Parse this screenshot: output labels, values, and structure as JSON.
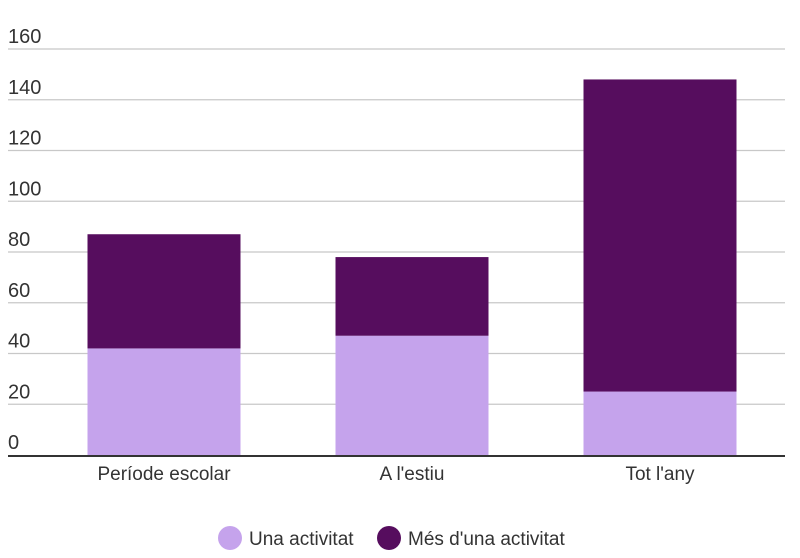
{
  "chart_data": {
    "type": "bar",
    "stacked": true,
    "categories": [
      "Període escolar",
      "A l'estiu",
      "Tot l'any"
    ],
    "series": [
      {
        "name": "Una activitat",
        "color": "#c5a3ec",
        "values": [
          42,
          47,
          25
        ]
      },
      {
        "name": "Més d'una activitat",
        "color": "#560d5e",
        "values": [
          45,
          31,
          123
        ]
      }
    ],
    "ylim": [
      0,
      160
    ],
    "yticks": [
      0,
      20,
      40,
      60,
      80,
      100,
      120,
      140,
      160
    ],
    "grid": true,
    "legend_position": "bottom-center",
    "title": "",
    "xlabel": "",
    "ylabel": ""
  }
}
